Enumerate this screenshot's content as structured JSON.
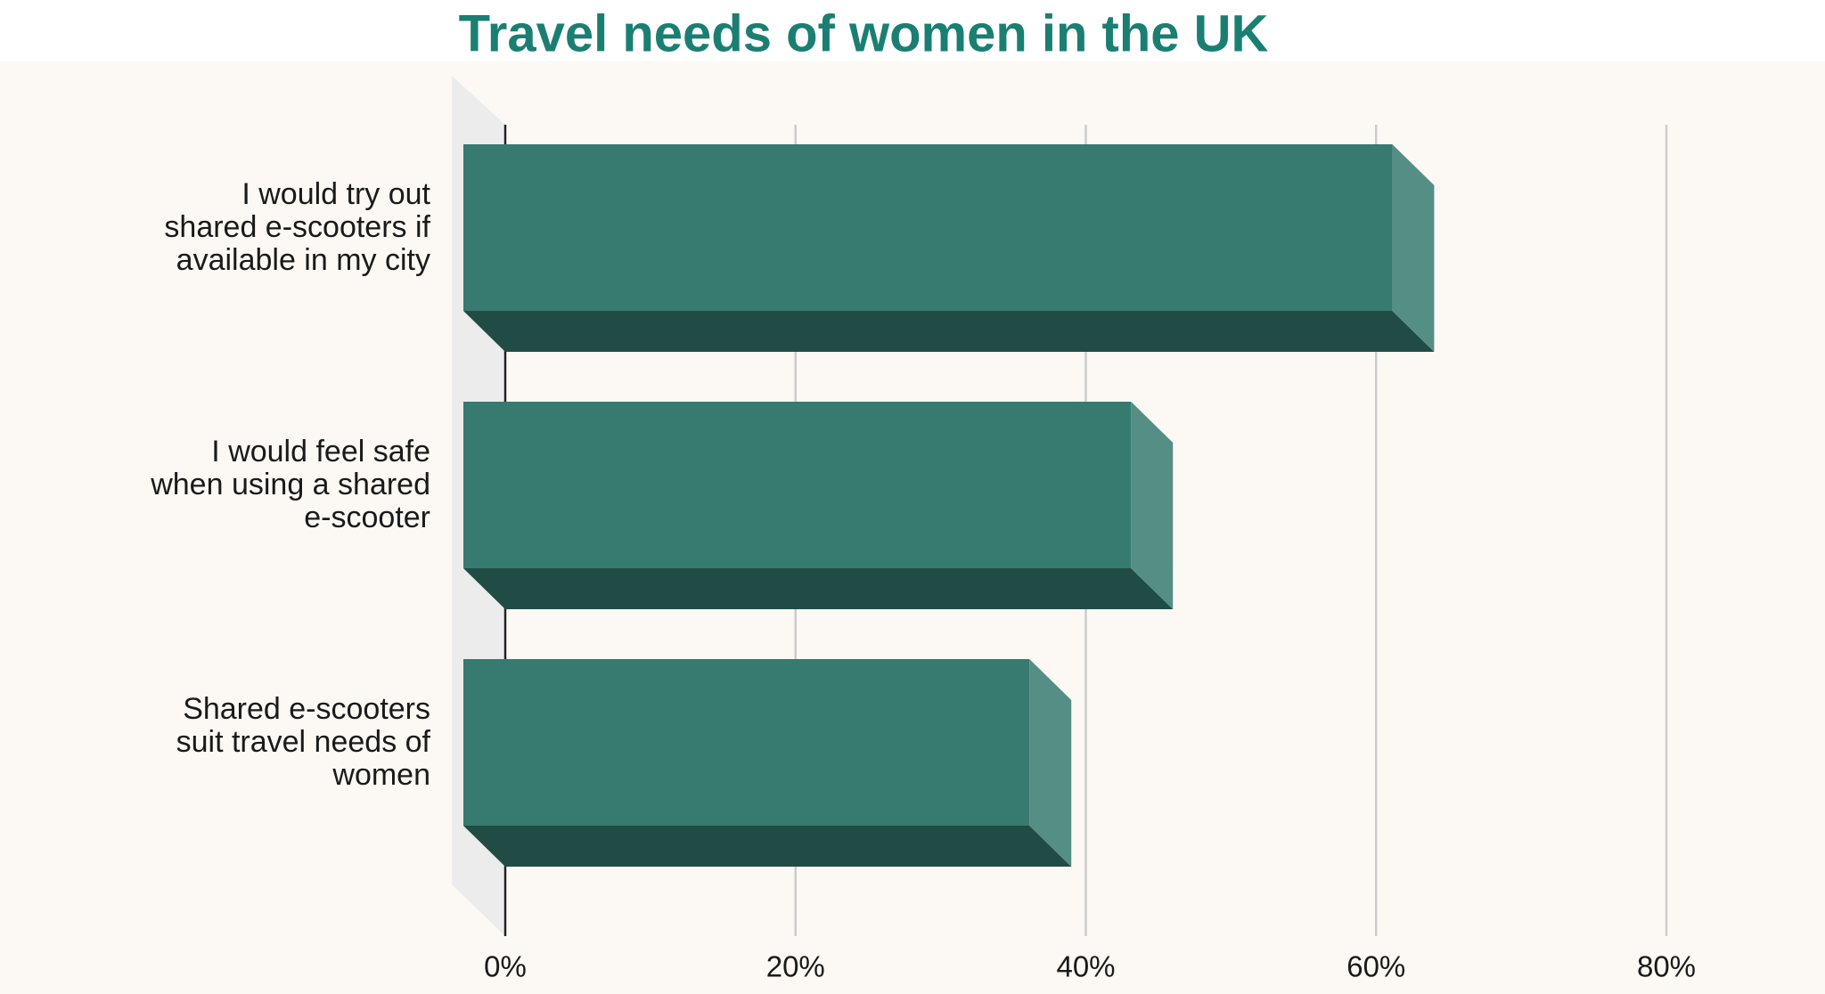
{
  "chart_data": {
    "type": "bar3d-horizontal",
    "title": "Travel needs of women in the UK",
    "categories": [
      "I would try out\nshared e-scooters if\navailable in my city",
      "I would feel safe\nwhen using a shared\ne-scooter",
      "Shared e-scooters\nsuit travel needs of\nwomen"
    ],
    "values": [
      64,
      46,
      39
    ],
    "color": "#367a70",
    "xlim": [
      0,
      80
    ],
    "xticks": [
      {
        "value": 0,
        "label": "0%"
      },
      {
        "value": 20,
        "label": "20%"
      },
      {
        "value": 40,
        "label": "40%"
      },
      {
        "value": 60,
        "label": "60%"
      },
      {
        "value": 80,
        "label": "80%"
      }
    ],
    "grid": true
  }
}
